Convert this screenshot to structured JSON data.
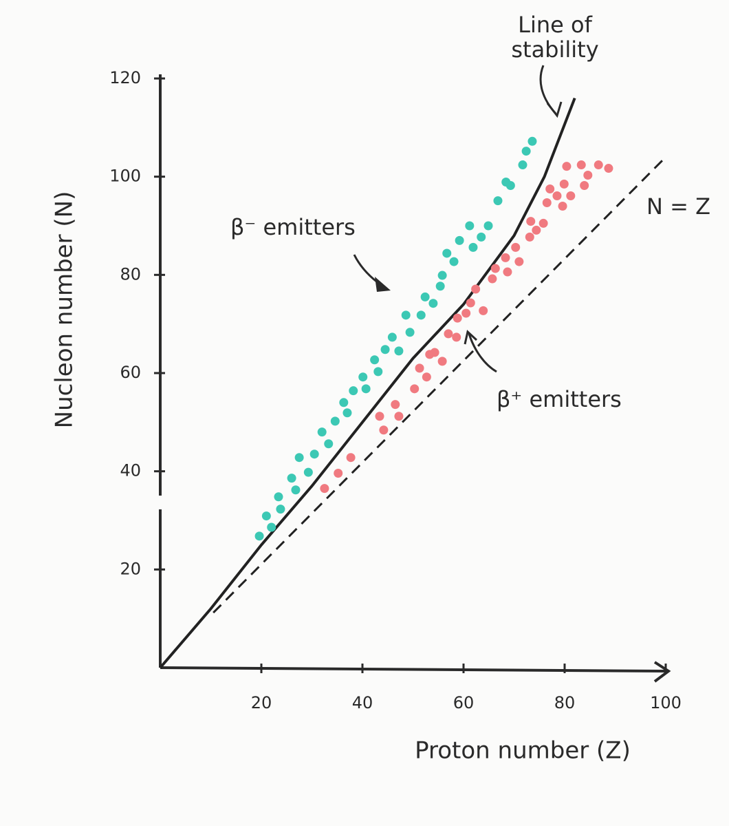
{
  "chart_data": {
    "type": "scatter",
    "x_label": "Proton number (Z)",
    "y_label": "Nucleon number (N)",
    "xlim": [
      0,
      100
    ],
    "ylim": [
      0,
      120
    ],
    "xticks": [
      20,
      40,
      60,
      80,
      100
    ],
    "yticks": [
      20,
      40,
      60,
      80,
      100,
      120
    ],
    "series": [
      {
        "name": "Line of stability",
        "style": "line",
        "color": "#222222",
        "x": [
          0,
          10,
          20,
          30,
          40,
          50,
          60,
          70,
          76,
          82
        ],
        "values": [
          0,
          12,
          25,
          37,
          50,
          63,
          74,
          88,
          100,
          116
        ]
      },
      {
        "name": "N = Z",
        "style": "dashed",
        "color": "#222222",
        "x": [
          10.5,
          100
        ],
        "values": [
          11.2,
          104
        ]
      },
      {
        "name": "β⁻ emitters",
        "style": "points",
        "color": "#3cc8b4",
        "x": [
          19.6,
          21.0,
          22.0,
          23.4,
          23.8,
          26.0,
          26.8,
          27.5,
          29.3,
          30.5,
          32.0,
          33.3,
          34.6,
          36.3,
          37.0,
          38.2,
          40.1,
          40.7,
          42.4,
          43.1,
          44.5,
          45.9,
          47.2,
          48.6,
          49.4,
          51.6,
          52.4,
          54.0,
          55.4,
          55.8,
          56.7,
          58.1,
          59.2,
          61.2,
          61.9,
          63.5,
          64.9,
          66.8,
          68.4,
          69.3,
          71.7,
          72.4,
          73.6
        ],
        "values": [
          26.8,
          30.9,
          28.6,
          34.8,
          32.3,
          38.6,
          36.2,
          42.8,
          39.8,
          43.5,
          48.0,
          45.6,
          50.2,
          54.0,
          51.9,
          56.4,
          59.2,
          56.8,
          62.7,
          60.3,
          64.8,
          67.3,
          64.5,
          71.8,
          68.3,
          71.8,
          75.5,
          74.2,
          77.7,
          79.9,
          84.4,
          82.7,
          87.0,
          90.0,
          85.6,
          87.7,
          90.0,
          95.1,
          98.9,
          98.2,
          102.4,
          105.2,
          107.2
        ]
      },
      {
        "name": "β⁺ emitters",
        "style": "points",
        "color": "#f07a80",
        "x": [
          32.5,
          35.2,
          37.7,
          43.4,
          44.2,
          46.5,
          47.2,
          50.3,
          51.3,
          52.7,
          53.3,
          54.3,
          55.8,
          57.0,
          58.6,
          58.8,
          60.5,
          61.4,
          62.4,
          63.9,
          65.7,
          66.3,
          68.3,
          68.7,
          70.3,
          71.0,
          73.1,
          73.3,
          74.4,
          75.8,
          76.5,
          77.1,
          78.5,
          79.6,
          79.9,
          80.4,
          81.2,
          83.3,
          83.9,
          84.6,
          86.7,
          88.7
        ],
        "values": [
          36.5,
          39.6,
          42.8,
          51.2,
          48.4,
          53.6,
          51.2,
          56.8,
          61.0,
          59.2,
          63.8,
          64.2,
          62.4,
          68.0,
          67.3,
          71.2,
          72.2,
          74.3,
          77.1,
          72.7,
          79.2,
          81.3,
          83.5,
          80.6,
          85.6,
          82.7,
          87.7,
          90.9,
          89.1,
          90.5,
          94.7,
          97.5,
          96.1,
          94.0,
          98.5,
          102.1,
          96.1,
          102.4,
          98.2,
          100.3,
          102.4,
          101.7
        ]
      }
    ]
  }
}
